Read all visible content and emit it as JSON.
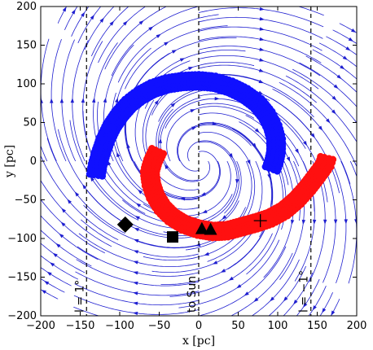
{
  "chart_data": {
    "type": "scatter",
    "xlabel": "x [pc]",
    "ylabel": "y [pc]",
    "xlim": [
      -200,
      200
    ],
    "ylim": [
      -200,
      200
    ],
    "x_ticks": [
      -200,
      -150,
      -100,
      -50,
      0,
      50,
      100,
      150,
      200
    ],
    "y_ticks": [
      -200,
      -150,
      -100,
      -50,
      0,
      50,
      100,
      150,
      200
    ],
    "grid": false,
    "background": "streamlines",
    "colors": {
      "stream": "#1f1fd0",
      "near_arm": "#ff1010",
      "far_arm": "#1010ff",
      "markers": "#000000"
    },
    "reference_lines": [
      {
        "x": -142,
        "label": "l = 1°"
      },
      {
        "x": 0,
        "label": "to Sun"
      },
      {
        "x": 142,
        "label": "l = −1°"
      }
    ],
    "series": [
      {
        "color": "#1010ff",
        "points": [
          [
            -130,
            -18
          ],
          [
            -128,
            -5
          ],
          [
            -124,
            10
          ],
          [
            -118,
            28
          ],
          [
            -110,
            45
          ],
          [
            -100,
            60
          ],
          [
            -88,
            74
          ],
          [
            -74,
            85
          ],
          [
            -58,
            94
          ],
          [
            -40,
            100
          ],
          [
            -20,
            103
          ],
          [
            0,
            104
          ],
          [
            20,
            102
          ],
          [
            40,
            96
          ],
          [
            58,
            87
          ],
          [
            74,
            75
          ],
          [
            86,
            60
          ],
          [
            94,
            44
          ],
          [
            98,
            28
          ],
          [
            98,
            12
          ],
          [
            95,
            -2
          ],
          [
            92,
            -10
          ]
        ]
      },
      {
        "color": "#ff1010",
        "points": [
          [
            -52,
            13
          ],
          [
            -58,
            0
          ],
          [
            -62,
            -14
          ],
          [
            -60,
            -30
          ],
          [
            -55,
            -45
          ],
          [
            -46,
            -60
          ],
          [
            -34,
            -72
          ],
          [
            -18,
            -82
          ],
          [
            0,
            -88
          ],
          [
            18,
            -91
          ],
          [
            36,
            -90
          ],
          [
            54,
            -85
          ],
          [
            72,
            -80
          ],
          [
            90,
            -74
          ],
          [
            108,
            -64
          ],
          [
            124,
            -50
          ],
          [
            138,
            -34
          ],
          [
            150,
            -18
          ],
          [
            160,
            -4
          ],
          [
            162,
            4
          ]
        ]
      },
      {
        "marker": "diamond",
        "color": "#000000",
        "points": [
          [
            -93,
            -82
          ]
        ]
      },
      {
        "marker": "square",
        "color": "#000000",
        "points": [
          [
            -33,
            -98
          ]
        ]
      },
      {
        "marker": "triangle",
        "color": "#000000",
        "points": [
          [
            4,
            -88
          ],
          [
            15,
            -89
          ]
        ]
      },
      {
        "marker": "plus",
        "color": "#000000",
        "points": [
          [
            78,
            -77
          ]
        ]
      }
    ]
  }
}
